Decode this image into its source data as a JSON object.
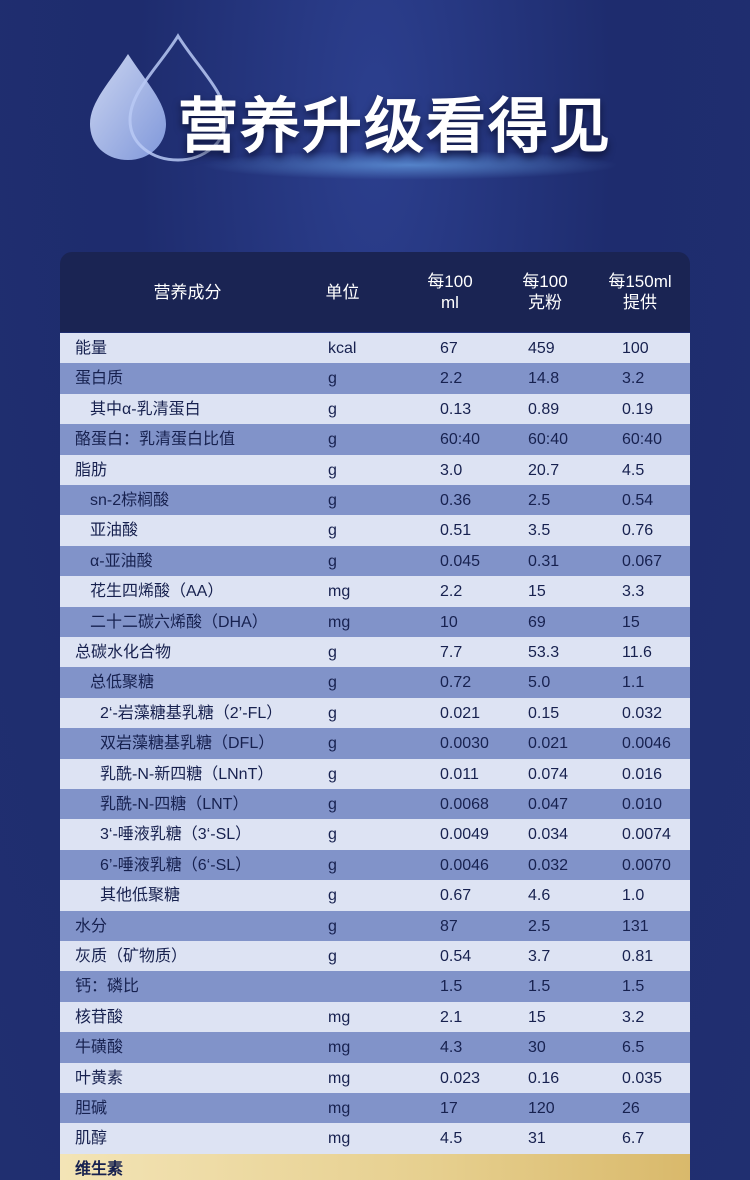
{
  "header": {
    "title": "营养升级看得见"
  },
  "table": {
    "columns": [
      [
        "营养成分"
      ],
      [
        "单位"
      ],
      [
        "每100",
        "ml"
      ],
      [
        "每100",
        "克粉"
      ],
      [
        "每150ml",
        "提供"
      ]
    ],
    "rows": [
      [
        "能量",
        "kcal",
        "67",
        "459",
        "100"
      ],
      [
        "蛋白质",
        "g",
        "2.2",
        "14.8",
        "3.2"
      ],
      [
        "其中α-乳清蛋白",
        "g",
        "0.13",
        "0.89",
        "0.19"
      ],
      [
        "酪蛋白：乳清蛋白比值",
        "g",
        "60:40",
        "60:40",
        "60:40"
      ],
      [
        "脂肪",
        "g",
        "3.0",
        "20.7",
        "4.5"
      ],
      [
        "sn-2棕榈酸",
        "g",
        "0.36",
        "2.5",
        "0.54"
      ],
      [
        "亚油酸",
        "g",
        "0.51",
        "3.5",
        "0.76"
      ],
      [
        "α-亚油酸",
        "g",
        "0.045",
        "0.31",
        "0.067"
      ],
      [
        "花生四烯酸（AA）",
        "mg",
        "2.2",
        "15",
        "3.3"
      ],
      [
        "二十二碳六烯酸（DHA）",
        "mg",
        "10",
        "69",
        "15"
      ],
      [
        "总碳水化合物",
        "g",
        "7.7",
        "53.3",
        "11.6"
      ],
      [
        "总低聚糖",
        "g",
        "0.72",
        "5.0",
        "1.1"
      ],
      [
        "2‘-岩藻糖基乳糖（2’-FL）",
        "g",
        "0.021",
        "0.15",
        "0.032"
      ],
      [
        "双岩藻糖基乳糖（DFL）",
        "g",
        "0.0030",
        "0.021",
        "0.0046"
      ],
      [
        "乳酰-N-新四糖（LNnT）",
        "g",
        "0.011",
        "0.074",
        "0.016"
      ],
      [
        "乳酰-N-四糖（LNT）",
        "g",
        "0.0068",
        "0.047",
        "0.010"
      ],
      [
        "3‘-唾液乳糖（3‘-SL）",
        "g",
        "0.0049",
        "0.034",
        "0.0074"
      ],
      [
        "6’-唾液乳糖（6‘-SL）",
        "g",
        "0.0046",
        "0.032",
        "0.0070"
      ],
      [
        "其他低聚糖",
        "g",
        "0.67",
        "4.6",
        "1.0"
      ],
      [
        "水分",
        "g",
        "87",
        "2.5",
        "131"
      ],
      [
        "灰质（矿物质）",
        "g",
        "0.54",
        "3.7",
        "0.81"
      ],
      [
        "钙：磷比",
        null,
        "1.5",
        "1.5",
        "1.5"
      ],
      [
        "核苷酸",
        "mg",
        "2.1",
        "15",
        "3.2"
      ],
      [
        "牛磺酸",
        "mg",
        "4.3",
        "30",
        "6.5"
      ],
      [
        "叶黄素",
        "mg",
        "0.023",
        "0.16",
        "0.035"
      ],
      [
        "胆碱",
        "mg",
        "17",
        "120",
        "26"
      ],
      [
        "肌醇",
        "mg",
        "4.5",
        "31",
        "6.7"
      ]
    ],
    "section": "维生素"
  }
}
